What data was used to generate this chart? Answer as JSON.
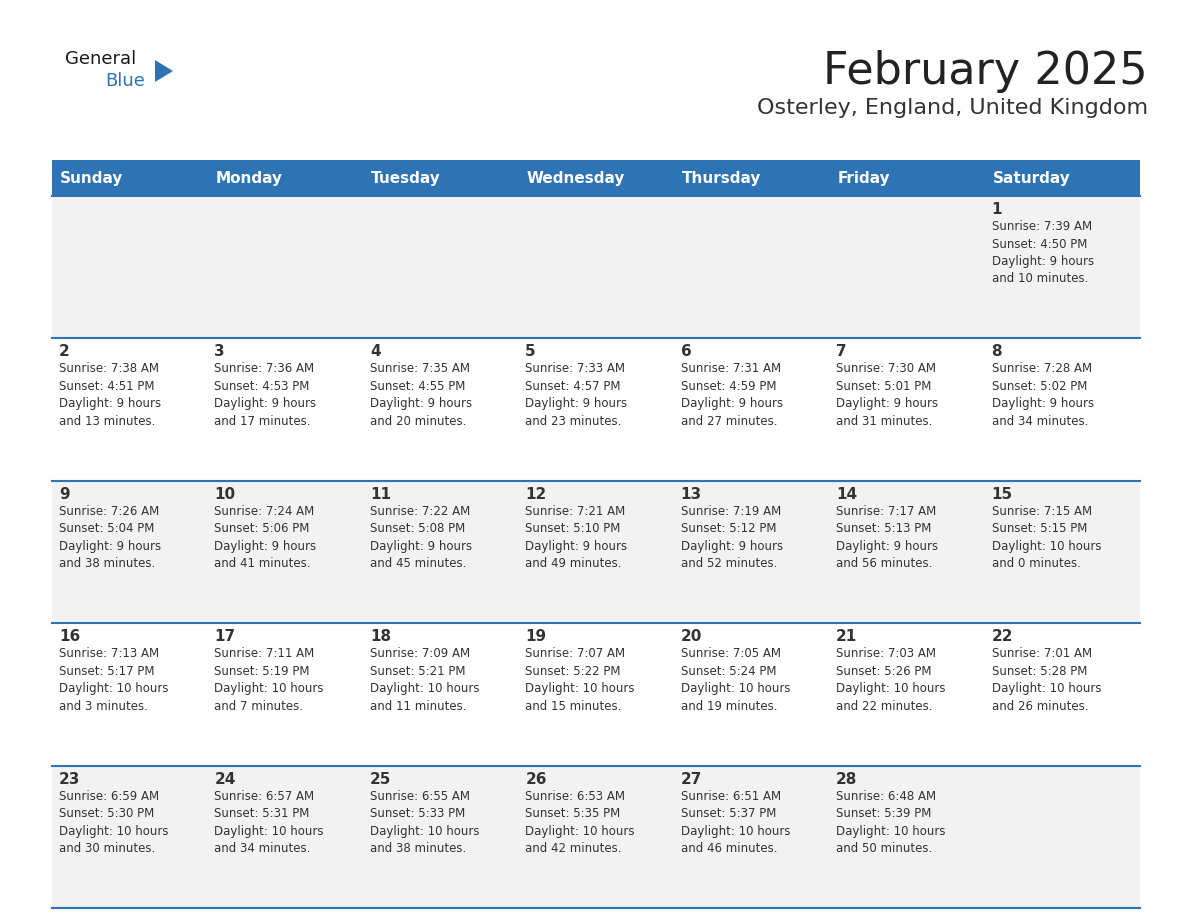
{
  "title": "February 2025",
  "subtitle": "Osterley, England, United Kingdom",
  "header_bg": "#2E74B5",
  "header_text_color": "#FFFFFF",
  "cell_bg_odd": "#F2F2F2",
  "cell_bg_even": "#FFFFFF",
  "text_color": "#333333",
  "border_color": "#2E74B5",
  "days_of_week": [
    "Sunday",
    "Monday",
    "Tuesday",
    "Wednesday",
    "Thursday",
    "Friday",
    "Saturday"
  ],
  "weeks": [
    [
      {
        "day": null,
        "info": null
      },
      {
        "day": null,
        "info": null
      },
      {
        "day": null,
        "info": null
      },
      {
        "day": null,
        "info": null
      },
      {
        "day": null,
        "info": null
      },
      {
        "day": null,
        "info": null
      },
      {
        "day": 1,
        "info": "Sunrise: 7:39 AM\nSunset: 4:50 PM\nDaylight: 9 hours\nand 10 minutes."
      }
    ],
    [
      {
        "day": 2,
        "info": "Sunrise: 7:38 AM\nSunset: 4:51 PM\nDaylight: 9 hours\nand 13 minutes."
      },
      {
        "day": 3,
        "info": "Sunrise: 7:36 AM\nSunset: 4:53 PM\nDaylight: 9 hours\nand 17 minutes."
      },
      {
        "day": 4,
        "info": "Sunrise: 7:35 AM\nSunset: 4:55 PM\nDaylight: 9 hours\nand 20 minutes."
      },
      {
        "day": 5,
        "info": "Sunrise: 7:33 AM\nSunset: 4:57 PM\nDaylight: 9 hours\nand 23 minutes."
      },
      {
        "day": 6,
        "info": "Sunrise: 7:31 AM\nSunset: 4:59 PM\nDaylight: 9 hours\nand 27 minutes."
      },
      {
        "day": 7,
        "info": "Sunrise: 7:30 AM\nSunset: 5:01 PM\nDaylight: 9 hours\nand 31 minutes."
      },
      {
        "day": 8,
        "info": "Sunrise: 7:28 AM\nSunset: 5:02 PM\nDaylight: 9 hours\nand 34 minutes."
      }
    ],
    [
      {
        "day": 9,
        "info": "Sunrise: 7:26 AM\nSunset: 5:04 PM\nDaylight: 9 hours\nand 38 minutes."
      },
      {
        "day": 10,
        "info": "Sunrise: 7:24 AM\nSunset: 5:06 PM\nDaylight: 9 hours\nand 41 minutes."
      },
      {
        "day": 11,
        "info": "Sunrise: 7:22 AM\nSunset: 5:08 PM\nDaylight: 9 hours\nand 45 minutes."
      },
      {
        "day": 12,
        "info": "Sunrise: 7:21 AM\nSunset: 5:10 PM\nDaylight: 9 hours\nand 49 minutes."
      },
      {
        "day": 13,
        "info": "Sunrise: 7:19 AM\nSunset: 5:12 PM\nDaylight: 9 hours\nand 52 minutes."
      },
      {
        "day": 14,
        "info": "Sunrise: 7:17 AM\nSunset: 5:13 PM\nDaylight: 9 hours\nand 56 minutes."
      },
      {
        "day": 15,
        "info": "Sunrise: 7:15 AM\nSunset: 5:15 PM\nDaylight: 10 hours\nand 0 minutes."
      }
    ],
    [
      {
        "day": 16,
        "info": "Sunrise: 7:13 AM\nSunset: 5:17 PM\nDaylight: 10 hours\nand 3 minutes."
      },
      {
        "day": 17,
        "info": "Sunrise: 7:11 AM\nSunset: 5:19 PM\nDaylight: 10 hours\nand 7 minutes."
      },
      {
        "day": 18,
        "info": "Sunrise: 7:09 AM\nSunset: 5:21 PM\nDaylight: 10 hours\nand 11 minutes."
      },
      {
        "day": 19,
        "info": "Sunrise: 7:07 AM\nSunset: 5:22 PM\nDaylight: 10 hours\nand 15 minutes."
      },
      {
        "day": 20,
        "info": "Sunrise: 7:05 AM\nSunset: 5:24 PM\nDaylight: 10 hours\nand 19 minutes."
      },
      {
        "day": 21,
        "info": "Sunrise: 7:03 AM\nSunset: 5:26 PM\nDaylight: 10 hours\nand 22 minutes."
      },
      {
        "day": 22,
        "info": "Sunrise: 7:01 AM\nSunset: 5:28 PM\nDaylight: 10 hours\nand 26 minutes."
      }
    ],
    [
      {
        "day": 23,
        "info": "Sunrise: 6:59 AM\nSunset: 5:30 PM\nDaylight: 10 hours\nand 30 minutes."
      },
      {
        "day": 24,
        "info": "Sunrise: 6:57 AM\nSunset: 5:31 PM\nDaylight: 10 hours\nand 34 minutes."
      },
      {
        "day": 25,
        "info": "Sunrise: 6:55 AM\nSunset: 5:33 PM\nDaylight: 10 hours\nand 38 minutes."
      },
      {
        "day": 26,
        "info": "Sunrise: 6:53 AM\nSunset: 5:35 PM\nDaylight: 10 hours\nand 42 minutes."
      },
      {
        "day": 27,
        "info": "Sunrise: 6:51 AM\nSunset: 5:37 PM\nDaylight: 10 hours\nand 46 minutes."
      },
      {
        "day": 28,
        "info": "Sunrise: 6:48 AM\nSunset: 5:39 PM\nDaylight: 10 hours\nand 50 minutes."
      },
      {
        "day": null,
        "info": null
      }
    ]
  ],
  "logo_text_general": "General",
  "logo_text_blue": "Blue",
  "logo_color_general": "#1a1a1a",
  "logo_color_blue": "#2E74B5"
}
